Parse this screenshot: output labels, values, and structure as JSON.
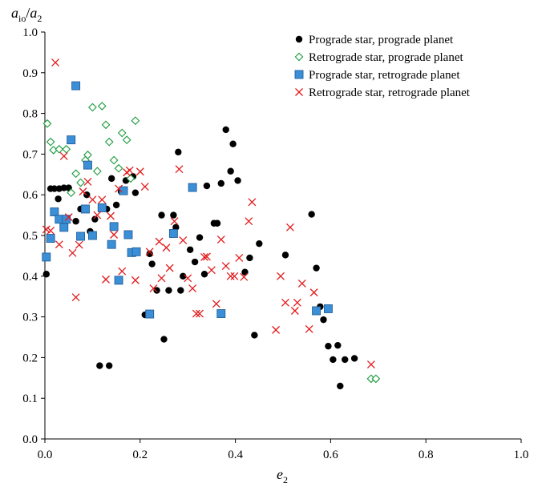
{
  "chart_data": {
    "type": "scatter",
    "title": "",
    "xlabel": {
      "base": "e",
      "sub": "2"
    },
    "ylabel": {
      "base": "a",
      "sub1": "io",
      "sep": "/",
      "base2": "a",
      "sub2": "2"
    },
    "xlim": [
      0,
      1
    ],
    "ylim": [
      0,
      1
    ],
    "xticks": [
      "0.0",
      "0.2",
      "0.4",
      "0.6",
      "0.8",
      "1.0"
    ],
    "yticks": [
      "0.0",
      "0.1",
      "0.2",
      "0.3",
      "0.4",
      "0.5",
      "0.6",
      "0.7",
      "0.8",
      "0.9",
      "1.0"
    ],
    "grid": false,
    "legend_position": "top-right",
    "series": [
      {
        "name": "Prograde star, prograde planet",
        "marker": "circle",
        "color": "#000000",
        "points": [
          [
            0.003,
            0.405
          ],
          [
            0.012,
            0.615
          ],
          [
            0.02,
            0.615
          ],
          [
            0.028,
            0.59
          ],
          [
            0.03,
            0.615
          ],
          [
            0.04,
            0.617
          ],
          [
            0.045,
            0.54
          ],
          [
            0.05,
            0.617
          ],
          [
            0.065,
            0.535
          ],
          [
            0.075,
            0.565
          ],
          [
            0.088,
            0.6
          ],
          [
            0.095,
            0.51
          ],
          [
            0.105,
            0.54
          ],
          [
            0.115,
            0.18
          ],
          [
            0.13,
            0.565
          ],
          [
            0.135,
            0.18
          ],
          [
            0.14,
            0.64
          ],
          [
            0.15,
            0.575
          ],
          [
            0.16,
            0.608
          ],
          [
            0.17,
            0.635
          ],
          [
            0.185,
            0.645
          ],
          [
            0.19,
            0.605
          ],
          [
            0.21,
            0.305
          ],
          [
            0.22,
            0.455
          ],
          [
            0.225,
            0.43
          ],
          [
            0.235,
            0.365
          ],
          [
            0.245,
            0.55
          ],
          [
            0.25,
            0.245
          ],
          [
            0.26,
            0.365
          ],
          [
            0.27,
            0.55
          ],
          [
            0.275,
            0.52
          ],
          [
            0.28,
            0.705
          ],
          [
            0.285,
            0.365
          ],
          [
            0.29,
            0.4
          ],
          [
            0.305,
            0.465
          ],
          [
            0.315,
            0.435
          ],
          [
            0.325,
            0.495
          ],
          [
            0.335,
            0.405
          ],
          [
            0.34,
            0.622
          ],
          [
            0.355,
            0.53
          ],
          [
            0.362,
            0.53
          ],
          [
            0.37,
            0.628
          ],
          [
            0.38,
            0.76
          ],
          [
            0.39,
            0.658
          ],
          [
            0.395,
            0.725
          ],
          [
            0.405,
            0.635
          ],
          [
            0.42,
            0.41
          ],
          [
            0.43,
            0.445
          ],
          [
            0.44,
            0.255
          ],
          [
            0.45,
            0.48
          ],
          [
            0.505,
            0.452
          ],
          [
            0.56,
            0.552
          ],
          [
            0.57,
            0.42
          ],
          [
            0.578,
            0.325
          ],
          [
            0.585,
            0.293
          ],
          [
            0.595,
            0.228
          ],
          [
            0.605,
            0.195
          ],
          [
            0.615,
            0.23
          ],
          [
            0.62,
            0.13
          ],
          [
            0.63,
            0.195
          ],
          [
            0.65,
            0.198
          ]
        ]
      },
      {
        "name": "Retrograde star, prograde planet",
        "marker": "diamond",
        "color": "#1a9a3a",
        "points": [
          [
            0.005,
            0.775
          ],
          [
            0.012,
            0.73
          ],
          [
            0.018,
            0.71
          ],
          [
            0.03,
            0.712
          ],
          [
            0.045,
            0.712
          ],
          [
            0.055,
            0.605
          ],
          [
            0.065,
            0.652
          ],
          [
            0.075,
            0.63
          ],
          [
            0.085,
            0.685
          ],
          [
            0.09,
            0.698
          ],
          [
            0.1,
            0.815
          ],
          [
            0.11,
            0.658
          ],
          [
            0.12,
            0.818
          ],
          [
            0.128,
            0.772
          ],
          [
            0.135,
            0.73
          ],
          [
            0.145,
            0.685
          ],
          [
            0.155,
            0.665
          ],
          [
            0.162,
            0.752
          ],
          [
            0.172,
            0.735
          ],
          [
            0.18,
            0.64
          ],
          [
            0.19,
            0.782
          ],
          [
            0.685,
            0.148
          ],
          [
            0.695,
            0.148
          ]
        ]
      },
      {
        "name": "Prograde star, retrograde planet",
        "marker": "square",
        "color": "#3b8fd6",
        "points": [
          [
            0.003,
            0.447
          ],
          [
            0.012,
            0.493
          ],
          [
            0.02,
            0.558
          ],
          [
            0.03,
            0.54
          ],
          [
            0.04,
            0.52
          ],
          [
            0.045,
            0.54
          ],
          [
            0.055,
            0.735
          ],
          [
            0.065,
            0.868
          ],
          [
            0.075,
            0.498
          ],
          [
            0.085,
            0.565
          ],
          [
            0.09,
            0.673
          ],
          [
            0.1,
            0.5
          ],
          [
            0.12,
            0.568
          ],
          [
            0.14,
            0.478
          ],
          [
            0.145,
            0.522
          ],
          [
            0.155,
            0.39
          ],
          [
            0.165,
            0.61
          ],
          [
            0.175,
            0.502
          ],
          [
            0.182,
            0.458
          ],
          [
            0.192,
            0.46
          ],
          [
            0.22,
            0.307
          ],
          [
            0.27,
            0.505
          ],
          [
            0.31,
            0.618
          ],
          [
            0.37,
            0.308
          ],
          [
            0.57,
            0.315
          ],
          [
            0.595,
            0.32
          ]
        ]
      },
      {
        "name": "Retrograde star, retrograde planet",
        "marker": "x",
        "color": "#e31a1c",
        "points": [
          [
            0.003,
            0.515
          ],
          [
            0.012,
            0.512
          ],
          [
            0.022,
            0.925
          ],
          [
            0.03,
            0.478
          ],
          [
            0.04,
            0.695
          ],
          [
            0.05,
            0.545
          ],
          [
            0.058,
            0.457
          ],
          [
            0.065,
            0.348
          ],
          [
            0.072,
            0.477
          ],
          [
            0.08,
            0.608
          ],
          [
            0.09,
            0.632
          ],
          [
            0.1,
            0.588
          ],
          [
            0.11,
            0.55
          ],
          [
            0.12,
            0.588
          ],
          [
            0.128,
            0.392
          ],
          [
            0.138,
            0.548
          ],
          [
            0.145,
            0.502
          ],
          [
            0.155,
            0.615
          ],
          [
            0.162,
            0.412
          ],
          [
            0.172,
            0.655
          ],
          [
            0.178,
            0.66
          ],
          [
            0.19,
            0.39
          ],
          [
            0.2,
            0.657
          ],
          [
            0.21,
            0.62
          ],
          [
            0.22,
            0.46
          ],
          [
            0.228,
            0.37
          ],
          [
            0.24,
            0.485
          ],
          [
            0.245,
            0.395
          ],
          [
            0.255,
            0.47
          ],
          [
            0.262,
            0.42
          ],
          [
            0.272,
            0.535
          ],
          [
            0.282,
            0.663
          ],
          [
            0.29,
            0.488
          ],
          [
            0.3,
            0.395
          ],
          [
            0.31,
            0.37
          ],
          [
            0.318,
            0.308
          ],
          [
            0.325,
            0.308
          ],
          [
            0.335,
            0.447
          ],
          [
            0.34,
            0.448
          ],
          [
            0.35,
            0.415
          ],
          [
            0.36,
            0.332
          ],
          [
            0.37,
            0.49
          ],
          [
            0.38,
            0.425
          ],
          [
            0.39,
            0.4
          ],
          [
            0.398,
            0.4
          ],
          [
            0.408,
            0.445
          ],
          [
            0.418,
            0.398
          ],
          [
            0.428,
            0.535
          ],
          [
            0.435,
            0.582
          ],
          [
            0.485,
            0.268
          ],
          [
            0.495,
            0.4
          ],
          [
            0.505,
            0.335
          ],
          [
            0.515,
            0.52
          ],
          [
            0.525,
            0.315
          ],
          [
            0.53,
            0.335
          ],
          [
            0.54,
            0.382
          ],
          [
            0.555,
            0.27
          ],
          [
            0.565,
            0.36
          ],
          [
            0.685,
            0.183
          ]
        ]
      }
    ]
  }
}
